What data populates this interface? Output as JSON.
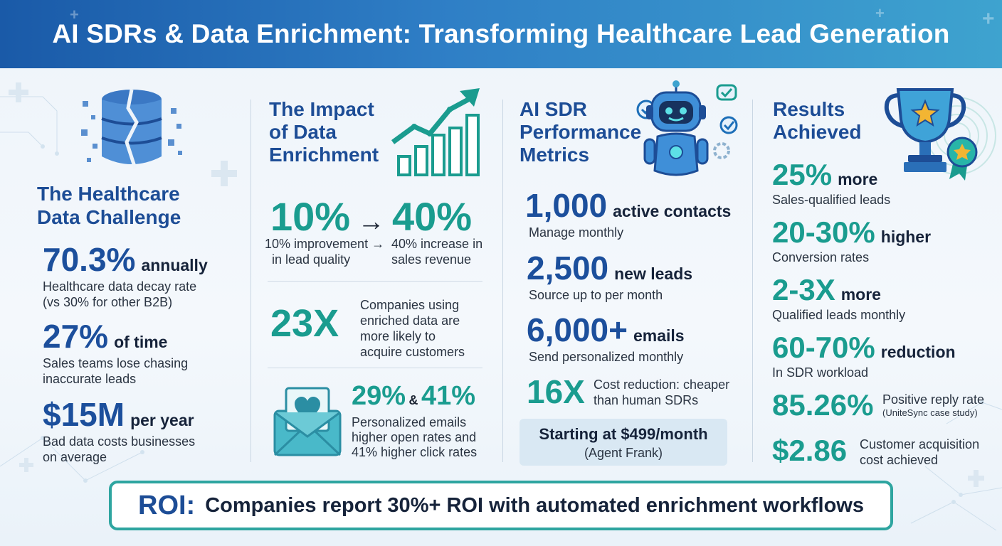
{
  "title": "AI SDRs & Data Enrichment: Transforming Healthcare Lead Generation",
  "challenge": {
    "title_line1": "The Healthcare",
    "title_line2": "Data Challenge",
    "stats": [
      {
        "value": "70.3%",
        "suffix": "annually",
        "desc_line1": "Healthcare data decay rate",
        "desc_line2": "(vs 30% for other B2B)"
      },
      {
        "value": "27%",
        "suffix": "of time",
        "desc_line1": "Sales teams lose chasing",
        "desc_line2": "inaccurate leads"
      },
      {
        "value": "$15M",
        "suffix": "per year",
        "desc_line1": "Bad data costs businesses",
        "desc_line2": "on average"
      }
    ]
  },
  "impact": {
    "title_line1": "The Impact",
    "title_line2": "of Data",
    "title_line3": "Enrichment",
    "big_left": "10%",
    "arrow": "→",
    "big_right": "40%",
    "left_desc_line1": "10% improvement →",
    "left_desc_line2": "in lead quality",
    "right_desc_line1": "40% increase in",
    "right_desc_line2": "sales revenue",
    "multiplier": "23X",
    "mult_desc_line1": "Companies using",
    "mult_desc_line2": "enriched data are",
    "mult_desc_line3": "more likely to",
    "mult_desc_line4": "acquire customers",
    "email_a": "29%",
    "email_amp": "&",
    "email_b": "41%",
    "email_desc_line1": "Personalized emails",
    "email_desc_line2": "higher open rates and",
    "email_desc_line3": "41% higher click rates"
  },
  "metrics": {
    "title_line1": "AI SDR",
    "title_line2": "Performance",
    "title_line3": "Metrics",
    "stats": [
      {
        "value": "1,000",
        "suffix": "active contacts",
        "desc": "Manage monthly"
      },
      {
        "value": "2,500",
        "suffix": "new leads",
        "desc": "Source up to per month"
      },
      {
        "value": "6,000+",
        "suffix": "emails",
        "desc": "Send personalized monthly"
      }
    ],
    "cost_value": "16X",
    "cost_desc_line1": "Cost reduction: cheaper",
    "cost_desc_line2": "than human SDRs",
    "price_line1": "Starting at $499/month",
    "price_line2": "(Agent Frank)"
  },
  "results": {
    "title_line1": "Results",
    "title_line2": "Achieved",
    "stats": [
      {
        "value": "25%",
        "suffix": "more",
        "desc": "Sales-qualified leads"
      },
      {
        "value": "20-30%",
        "suffix": "higher",
        "desc": "Conversion rates"
      },
      {
        "value": "2-3X",
        "suffix": "more",
        "desc": "Qualified leads monthly"
      },
      {
        "value": "60-70%",
        "suffix": "reduction",
        "desc": "In SDR workload"
      }
    ],
    "reply_value": "85.26%",
    "reply_desc_line1": "Positive reply rate",
    "reply_desc_line2": "(UniteSync case study)",
    "cac_value": "$2.86",
    "cac_desc_line1": "Customer acquisition",
    "cac_desc_line2": "cost achieved"
  },
  "roi": {
    "label": "ROI:",
    "text": "Companies report 30%+ ROI with automated enrichment workflows"
  },
  "icons": [
    "broken-database-icon",
    "growth-chart-icon",
    "robot-icon",
    "trophy-icon",
    "email-heart-icon",
    "medical-cross-icon"
  ],
  "colors": {
    "navy": "#1d4d96",
    "teal": "#1a9c8f",
    "header_start": "#1a5aa8",
    "header_end": "#3ea3cf",
    "roi_border": "#2ea5a0"
  }
}
